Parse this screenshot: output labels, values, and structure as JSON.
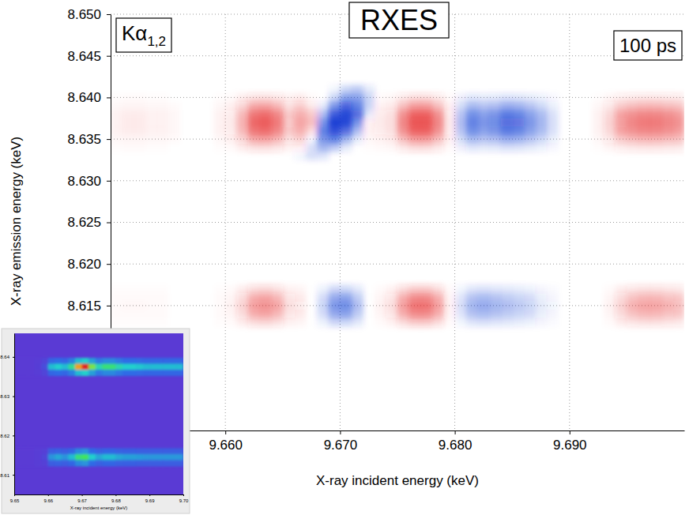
{
  "chart_data": [
    {
      "type": "heatmap",
      "title": "RXES",
      "annotations": [
        {
          "text": "Kα",
          "subscript": "1,2"
        },
        {
          "text": "100 ps"
        }
      ],
      "x_label": "X-ray incident energy (keV)",
      "y_label": "X-ray emission energy (keV)",
      "xlim": [
        9.65,
        9.7
      ],
      "ylim": [
        8.6,
        8.65
      ],
      "xticks": [
        {
          "value": 9.66,
          "label": "9.660"
        },
        {
          "value": 9.67,
          "label": "9.670"
        },
        {
          "value": 9.68,
          "label": "9.680"
        },
        {
          "value": 9.69,
          "label": "9.690"
        }
      ],
      "yticks": [
        {
          "value": 8.615,
          "label": "8.615"
        },
        {
          "value": 8.62,
          "label": "8.620"
        },
        8.625,
        {
          "value": 8.63,
          "label": "8.630"
        },
        8.635,
        {
          "value": 8.64,
          "label": "8.640"
        },
        8.645,
        {
          "value": 8.65,
          "label": "8.650"
        }
      ],
      "grid": true,
      "zlim": [
        -1,
        1
      ],
      "x": [
        9.6505,
        9.6515,
        9.6525,
        9.6535,
        9.6545,
        9.6555,
        9.6565,
        9.6575,
        9.6585,
        9.6595,
        9.6605,
        9.6615,
        9.6625,
        9.6635,
        9.6645,
        9.6655,
        9.6665,
        9.6675,
        9.6685,
        9.6695,
        9.6705,
        9.6715,
        9.6725,
        9.6735,
        9.6745,
        9.6755,
        9.6765,
        9.6775,
        9.6785,
        9.6795,
        9.6805,
        9.6815,
        9.6825,
        9.6835,
        9.6845,
        9.6855,
        9.6865,
        9.6875,
        9.6885,
        9.6895,
        9.6905,
        9.6915,
        9.6925,
        9.6935,
        9.6945,
        9.6955,
        9.6965,
        9.6975,
        9.6985,
        9.6995
      ],
      "y": [
        8.641,
        8.64,
        8.639,
        8.638,
        8.637,
        8.636,
        8.635,
        8.634,
        8.633,
        8.617,
        8.616,
        8.615,
        8.614,
        8.613
      ],
      "z": [
        [
          0,
          0,
          0,
          0,
          0,
          0,
          0,
          0,
          0,
          0,
          0,
          0,
          0,
          0,
          0,
          0,
          0,
          0,
          0,
          -0.05,
          -0.2,
          -0.25,
          -0.1,
          0,
          0,
          0,
          0,
          0,
          0,
          0,
          0,
          0,
          0,
          0,
          0,
          0,
          0,
          0,
          0,
          0,
          0,
          0,
          0,
          0,
          0,
          0,
          0,
          0,
          0,
          0
        ],
        [
          0.01,
          0.02,
          0.02,
          0.01,
          0.01,
          0,
          0,
          0,
          0,
          0.01,
          0.02,
          0.07,
          0.14,
          0.15,
          0.12,
          0.05,
          0.08,
          0.02,
          0,
          -0.2,
          -0.45,
          -0.45,
          -0.2,
          0.02,
          0.03,
          0.11,
          0.16,
          0.16,
          0.11,
          0.02,
          -0.06,
          -0.12,
          -0.1,
          -0.11,
          -0.14,
          -0.13,
          -0.1,
          -0.07,
          -0.03,
          0,
          0,
          0,
          0.01,
          0.04,
          0.09,
          0.11,
          0.12,
          0.12,
          0.11,
          0.1
        ],
        [
          0.03,
          0.04,
          0.04,
          0.03,
          0.03,
          0.02,
          0,
          0,
          0,
          0.03,
          0.06,
          0.19,
          0.39,
          0.41,
          0.33,
          0.14,
          0.22,
          0.1,
          -0.1,
          -0.5,
          -0.75,
          -0.6,
          -0.2,
          0.05,
          0.08,
          0.3,
          0.44,
          0.44,
          0.3,
          0.06,
          -0.17,
          -0.33,
          -0.28,
          -0.3,
          -0.39,
          -0.36,
          -0.28,
          -0.19,
          -0.08,
          0,
          0,
          0,
          0.03,
          0.11,
          0.25,
          0.3,
          0.33,
          0.33,
          0.3,
          0.28
        ],
        [
          0.05,
          0.07,
          0.07,
          0.05,
          0.05,
          0.03,
          0,
          0,
          0,
          0.05,
          0.09,
          0.32,
          0.63,
          0.68,
          0.54,
          0.23,
          0.36,
          0.25,
          -0.3,
          -0.8,
          -0.9,
          -0.7,
          -0.1,
          0.09,
          0.14,
          0.5,
          0.72,
          0.72,
          0.5,
          0.09,
          -0.27,
          -0.54,
          -0.45,
          -0.5,
          -0.63,
          -0.59,
          -0.45,
          -0.32,
          -0.14,
          0,
          0,
          0,
          0.05,
          0.18,
          0.41,
          0.5,
          0.54,
          0.54,
          0.5,
          0.45
        ],
        [
          0.05,
          0.08,
          0.08,
          0.05,
          0.05,
          0.03,
          0,
          0,
          0,
          0.05,
          0.1,
          0.35,
          0.7,
          0.75,
          0.6,
          0.25,
          0.4,
          0.3,
          -0.5,
          -0.95,
          -0.9,
          -0.5,
          0.05,
          0.1,
          0.15,
          0.55,
          0.8,
          0.8,
          0.55,
          0.1,
          -0.3,
          -0.6,
          -0.5,
          -0.55,
          -0.7,
          -0.65,
          -0.5,
          -0.35,
          -0.15,
          0,
          0,
          0,
          0.05,
          0.2,
          0.45,
          0.55,
          0.6,
          0.6,
          0.55,
          0.5
        ],
        [
          0.05,
          0.07,
          0.07,
          0.05,
          0.05,
          0.03,
          0,
          0,
          0,
          0.05,
          0.09,
          0.32,
          0.63,
          0.68,
          0.54,
          0.23,
          0.36,
          0.15,
          -0.6,
          -0.85,
          -0.7,
          -0.3,
          0.05,
          0.09,
          0.14,
          0.5,
          0.72,
          0.72,
          0.5,
          0.09,
          -0.27,
          -0.54,
          -0.45,
          -0.5,
          -0.63,
          -0.59,
          -0.45,
          -0.32,
          -0.14,
          0,
          0,
          0,
          0.05,
          0.18,
          0.41,
          0.5,
          0.54,
          0.54,
          0.5,
          0.45
        ],
        [
          0.03,
          0.04,
          0.04,
          0.03,
          0.03,
          0.02,
          0,
          0,
          0,
          0.03,
          0.06,
          0.19,
          0.39,
          0.41,
          0.33,
          0.14,
          0.2,
          -0.05,
          -0.5,
          -0.6,
          -0.35,
          -0.1,
          0.03,
          0.05,
          0.08,
          0.3,
          0.44,
          0.44,
          0.3,
          0.06,
          -0.17,
          -0.33,
          -0.28,
          -0.3,
          -0.39,
          -0.36,
          -0.28,
          -0.19,
          -0.08,
          0,
          0,
          0,
          0.03,
          0.11,
          0.25,
          0.3,
          0.33,
          0.33,
          0.3,
          0.28
        ],
        [
          0.01,
          0.02,
          0.02,
          0.01,
          0.01,
          0,
          0,
          0,
          0,
          0.01,
          0.02,
          0.07,
          0.14,
          0.15,
          0.12,
          0.05,
          0.05,
          -0.15,
          -0.35,
          -0.25,
          -0.1,
          0,
          0.01,
          0.02,
          0.03,
          0.11,
          0.16,
          0.16,
          0.11,
          0.02,
          -0.06,
          -0.12,
          -0.1,
          -0.11,
          -0.14,
          -0.13,
          -0.1,
          -0.07,
          -0.03,
          0,
          0,
          0,
          0.01,
          0.04,
          0.09,
          0.11,
          0.12,
          0.12,
          0.11,
          0.1
        ],
        [
          0,
          0,
          0,
          0,
          0,
          0,
          0,
          0,
          0,
          0,
          0,
          0,
          0,
          0,
          0,
          0,
          -0.05,
          -0.15,
          -0.12,
          0,
          0,
          0,
          0,
          0,
          0,
          0,
          0,
          0,
          0,
          0,
          0,
          0,
          0,
          0,
          0,
          0,
          0,
          0,
          0,
          0,
          0,
          0,
          0,
          0,
          0,
          0,
          0,
          0,
          0,
          0
        ],
        [
          0.01,
          0.01,
          0.01,
          0.01,
          0.01,
          0,
          0,
          0,
          0,
          0.01,
          0.02,
          0.07,
          0.16,
          0.18,
          0.14,
          0.05,
          0.04,
          0,
          -0.07,
          -0.18,
          -0.19,
          -0.11,
          0,
          0.02,
          0.05,
          0.16,
          0.23,
          0.23,
          0.16,
          0.02,
          -0.05,
          -0.12,
          -0.14,
          -0.12,
          -0.11,
          -0.09,
          -0.07,
          -0.04,
          -0.02,
          0,
          0,
          0,
          0,
          0.02,
          0.07,
          0.12,
          0.14,
          0.14,
          0.12,
          0.11
        ],
        [
          0.02,
          0.02,
          0.02,
          0.02,
          0.02,
          0,
          0,
          0,
          0,
          0.02,
          0.04,
          0.16,
          0.36,
          0.4,
          0.32,
          0.12,
          0.08,
          0,
          -0.16,
          -0.4,
          -0.44,
          -0.24,
          0,
          0.04,
          0.12,
          0.36,
          0.52,
          0.52,
          0.36,
          0.04,
          -0.12,
          -0.28,
          -0.32,
          -0.28,
          -0.24,
          -0.2,
          -0.16,
          -0.08,
          -0.04,
          0,
          0,
          0,
          0,
          0.04,
          0.16,
          0.28,
          0.32,
          0.32,
          0.28,
          0.24
        ],
        [
          0.02,
          0.03,
          0.03,
          0.02,
          0.02,
          0,
          0,
          0,
          0,
          0.02,
          0.05,
          0.2,
          0.45,
          0.5,
          0.4,
          0.15,
          0.1,
          0,
          -0.2,
          -0.5,
          -0.55,
          -0.3,
          0,
          0.05,
          0.15,
          0.45,
          0.65,
          0.65,
          0.45,
          0.05,
          -0.15,
          -0.35,
          -0.4,
          -0.35,
          -0.3,
          -0.25,
          -0.2,
          -0.1,
          -0.05,
          0,
          0,
          0,
          0,
          0.05,
          0.2,
          0.35,
          0.4,
          0.4,
          0.35,
          0.3
        ],
        [
          0.02,
          0.02,
          0.02,
          0.02,
          0.02,
          0,
          0,
          0,
          0,
          0.02,
          0.04,
          0.16,
          0.36,
          0.4,
          0.32,
          0.12,
          0.08,
          0,
          -0.16,
          -0.4,
          -0.44,
          -0.24,
          0,
          0.04,
          0.12,
          0.36,
          0.52,
          0.52,
          0.36,
          0.04,
          -0.12,
          -0.28,
          -0.32,
          -0.28,
          -0.24,
          -0.2,
          -0.16,
          -0.08,
          -0.04,
          0,
          0,
          0,
          0,
          0.04,
          0.16,
          0.28,
          0.32,
          0.32,
          0.28,
          0.24
        ],
        [
          0.01,
          0.01,
          0.01,
          0.01,
          0.01,
          0,
          0,
          0,
          0,
          0.01,
          0.02,
          0.07,
          0.16,
          0.18,
          0.14,
          0.05,
          0.04,
          0,
          -0.07,
          -0.18,
          -0.19,
          -0.11,
          0,
          0.02,
          0.05,
          0.16,
          0.23,
          0.23,
          0.16,
          0.02,
          -0.05,
          -0.12,
          -0.14,
          -0.12,
          -0.11,
          -0.09,
          -0.07,
          -0.04,
          -0.02,
          0,
          0,
          0,
          0,
          0.02,
          0.07,
          0.12,
          0.14,
          0.14,
          0.12,
          0.11
        ]
      ]
    },
    {
      "type": "heatmap",
      "x_label": "X-ray incident energy (keV)",
      "xlim": [
        9.65,
        9.7
      ],
      "ylim": [
        8.605,
        8.646
      ],
      "xticks": [
        9.65,
        9.66,
        9.67,
        9.68,
        9.69,
        {
          "value": 9.7,
          "label": "9.70"
        }
      ],
      "yticks": [
        8.61,
        8.62,
        8.63,
        8.64
      ],
      "zlim": [
        0,
        1
      ],
      "x": [
        9.651,
        9.653,
        9.655,
        9.657,
        9.659,
        9.661,
        9.663,
        9.665,
        9.667,
        9.669,
        9.671,
        9.673,
        9.675,
        9.677,
        9.679,
        9.681,
        9.683,
        9.685,
        9.687,
        9.689,
        9.691,
        9.693,
        9.695,
        9.697,
        9.699
      ],
      "y": [
        8.639,
        8.6375,
        8.636,
        8.616,
        8.6145,
        8.613
      ],
      "z": [
        [
          0,
          0,
          0,
          0.01,
          0.05,
          0.22,
          0.25,
          0.22,
          0.3,
          0.45,
          0.5,
          0.38,
          0.28,
          0.32,
          0.32,
          0.28,
          0.25,
          0.25,
          0.24,
          0.22,
          0.22,
          0.22,
          0.22,
          0.22,
          0.22
        ],
        [
          0,
          0,
          0,
          0.02,
          0.1,
          0.45,
          0.5,
          0.45,
          0.6,
          0.9,
          1.0,
          0.75,
          0.55,
          0.65,
          0.65,
          0.55,
          0.5,
          0.5,
          0.48,
          0.45,
          0.45,
          0.45,
          0.45,
          0.45,
          0.45
        ],
        [
          0,
          0,
          0,
          0.01,
          0.05,
          0.22,
          0.25,
          0.22,
          0.3,
          0.45,
          0.5,
          0.38,
          0.28,
          0.32,
          0.32,
          0.28,
          0.25,
          0.25,
          0.24,
          0.22,
          0.22,
          0.22,
          0.22,
          0.22,
          0.22
        ],
        [
          0,
          0,
          0,
          0.01,
          0.03,
          0.18,
          0.2,
          0.18,
          0.22,
          0.32,
          0.35,
          0.25,
          0.2,
          0.22,
          0.22,
          0.2,
          0.19,
          0.19,
          0.18,
          0.18,
          0.18,
          0.18,
          0.18,
          0.18,
          0.18
        ],
        [
          0,
          0,
          0,
          0.01,
          0.05,
          0.35,
          0.4,
          0.35,
          0.45,
          0.65,
          0.7,
          0.5,
          0.4,
          0.45,
          0.45,
          0.4,
          0.38,
          0.38,
          0.37,
          0.36,
          0.36,
          0.36,
          0.36,
          0.36,
          0.36
        ],
        [
          0,
          0,
          0,
          0.01,
          0.03,
          0.18,
          0.2,
          0.18,
          0.22,
          0.32,
          0.35,
          0.25,
          0.2,
          0.22,
          0.22,
          0.2,
          0.19,
          0.19,
          0.18,
          0.18,
          0.18,
          0.18,
          0.18,
          0.18,
          0.18
        ]
      ]
    }
  ]
}
